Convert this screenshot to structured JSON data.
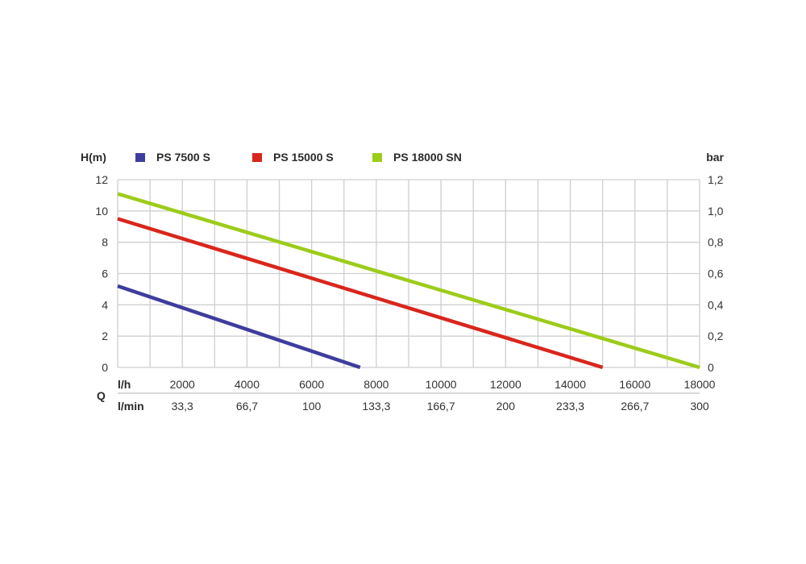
{
  "chart_data": {
    "type": "line",
    "left_axis_label": "H(m)",
    "right_axis_label": "bar",
    "left_ticks": [
      "0",
      "2",
      "4",
      "6",
      "8",
      "10",
      "12"
    ],
    "right_ticks": [
      "0",
      "0,2",
      "0,4",
      "0,6",
      "0,8",
      "1,0",
      "1,2"
    ],
    "ylim": [
      0,
      12
    ],
    "xlim": [
      0,
      18000
    ],
    "x_label_lh": "l/h",
    "x_label_lmin": "l/min",
    "x_label_q": "Q",
    "x_ticks_lh": [
      "2000",
      "4000",
      "6000",
      "8000",
      "10000",
      "12000",
      "14000",
      "16000",
      "18000"
    ],
    "x_ticks_lmin": [
      "33,3",
      "66,7",
      "100",
      "133,3",
      "166,7",
      "200",
      "233,3",
      "266,7",
      "300"
    ],
    "grid": true,
    "legend_position": "top",
    "series": [
      {
        "name": "PS 7500 S",
        "color": "#3d3d9e",
        "points": [
          [
            0,
            5.2
          ],
          [
            7500,
            0
          ]
        ]
      },
      {
        "name": "PS 15000 S",
        "color": "#d9261c",
        "points": [
          [
            0,
            9.5
          ],
          [
            15000,
            0
          ]
        ]
      },
      {
        "name": "PS 18000 SN",
        "color": "#9ccc1a",
        "points": [
          [
            0,
            11.1
          ],
          [
            18000,
            0
          ]
        ]
      }
    ]
  }
}
